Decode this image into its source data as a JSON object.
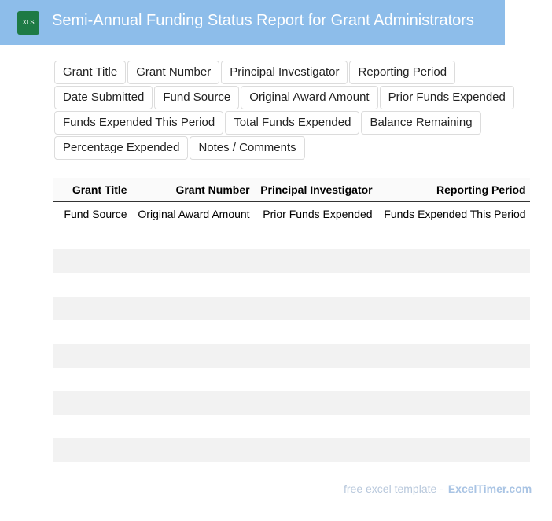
{
  "header": {
    "icon": "XLS",
    "title": "Semi-Annual Funding Status Report for Grant Administrators"
  },
  "fields": [
    "Grant Title",
    "Grant Number",
    "Principal Investigator",
    "Reporting Period",
    "Date Submitted",
    "Fund Source",
    "Original Award Amount",
    "Prior Funds Expended",
    "Funds Expended This Period",
    "Total Funds Expended",
    "Balance Remaining",
    "Percentage Expended",
    "Notes / Comments"
  ],
  "table": {
    "columns": [
      "Grant Title",
      "Grant Number",
      "Principal Investigator",
      "Reporting Period"
    ],
    "rows": [
      {
        "index": "0",
        "cells": [
          "Fund Source",
          "Original Award Amount",
          "Prior Funds Expended",
          "Funds Expended This Period"
        ]
      },
      {
        "index": "1",
        "cells": []
      },
      {
        "index": "2",
        "cells": []
      },
      {
        "index": "3",
        "cells": []
      },
      {
        "index": "4",
        "cells": []
      },
      {
        "index": "5",
        "cells": []
      },
      {
        "index": "6",
        "cells": []
      },
      {
        "index": "7",
        "cells": []
      },
      {
        "index": "8",
        "cells": []
      },
      {
        "index": "9",
        "cells": []
      },
      {
        "index": "10",
        "cells": []
      }
    ]
  },
  "footer": {
    "text": "free excel template -",
    "brand": "ExcelTimer.com"
  }
}
